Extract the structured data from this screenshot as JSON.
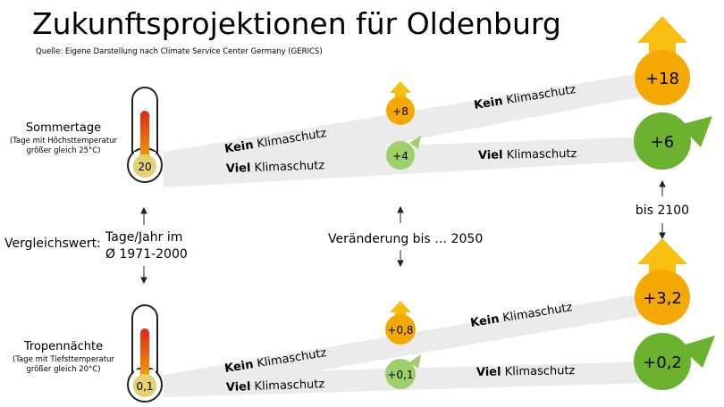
{
  "title": "Zukunftsprojektionen für Oldenburg",
  "source": "Quelle: Eigene Darstellung nach Climate Service Center Germany (GERICS)",
  "sommertage": {
    "label": "Sommertage",
    "desc1": "(Tage mit Höchsttemperatur",
    "desc2": "größer gleich 25°C)",
    "baseline": "20",
    "kein_2050": "+8",
    "viel_2050": "+4",
    "kein_2100": "+18",
    "viel_2100": "+6"
  },
  "tropennaechte": {
    "label": "Tropennächte",
    "desc1": "(Tage mit Tiefsttemperatur",
    "desc2": "größer gleich 20°C)",
    "baseline": "0,1",
    "kein_2050": "+0,8",
    "viel_2050": "+0,1",
    "kein_2100": "+3,2",
    "viel_2100": "+0,2"
  },
  "scenarios": {
    "kein_bold": "Kein",
    "viel_bold": "Viel",
    "rest": "Klimaschutz"
  },
  "legend": {
    "vergleich": "Vergleichswert:",
    "tage_line1": "Tage/Jahr im",
    "tage_line2": "Ø 1971-2000",
    "veraenderung": "Veränderung bis … 2050",
    "bis2100": "bis 2100"
  },
  "colors": {
    "orange": "#F5A800",
    "yellow_arrow": "#F8BE10",
    "green": "#6BB32E",
    "light_green": "#9ED06A",
    "band": "#EBEBEB",
    "mercury": "#E2231A"
  }
}
